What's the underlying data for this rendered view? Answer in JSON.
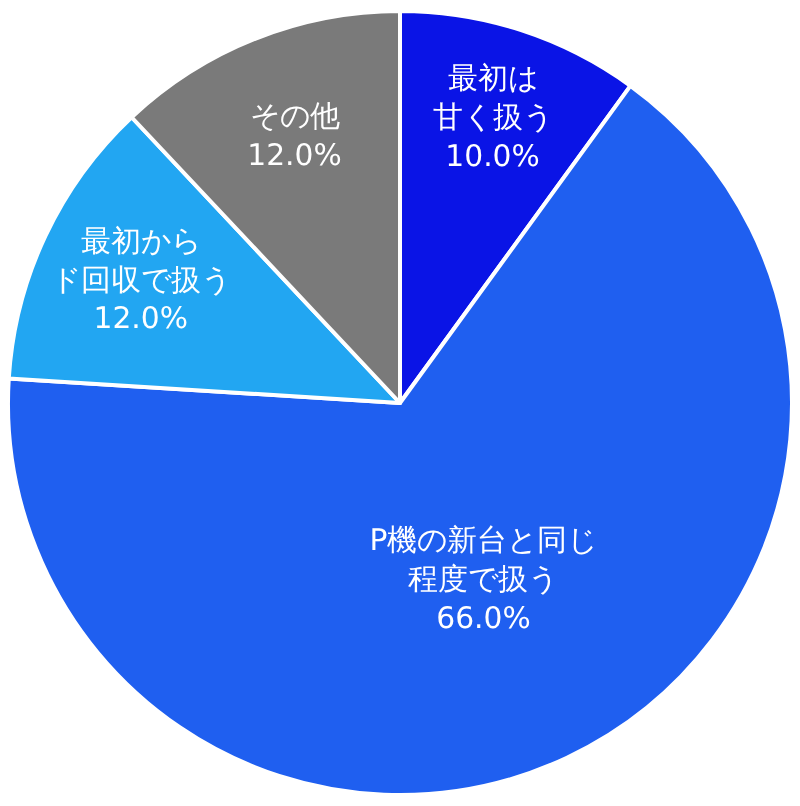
{
  "chart_data": {
    "type": "pie",
    "categories": [
      "最初は甘く扱う",
      "P機の新台と同じ程度で扱う",
      "最初からド回収で扱う",
      "その他"
    ],
    "values": [
      10.0,
      66.0,
      12.0,
      12.0
    ],
    "value_labels": [
      "10.0%",
      "66.0%",
      "12.0%",
      "12.0%"
    ],
    "colors": [
      "#0a14e6",
      "#1f5ff0",
      "#22a6f2",
      "#7a7a7a"
    ],
    "legend": false
  }
}
